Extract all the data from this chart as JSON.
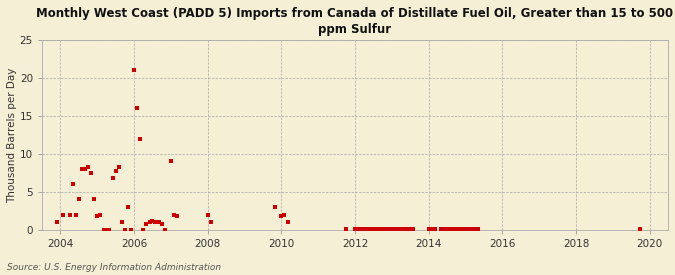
{
  "title": "Monthly West Coast (PADD 5) Imports from Canada of Distillate Fuel Oil, Greater than 15 to 500\nppm Sulfur",
  "ylabel": "Thousand Barrels per Day",
  "source": "Source: U.S. Energy Information Administration",
  "background_color": "#f5efd5",
  "plot_bg_color": "#f5efd5",
  "marker_color": "#cc0000",
  "xlim": [
    2003.5,
    2020.5
  ],
  "ylim": [
    0,
    25
  ],
  "yticks": [
    0,
    5,
    10,
    15,
    20,
    25
  ],
  "xticks": [
    2004,
    2006,
    2008,
    2010,
    2012,
    2014,
    2016,
    2018,
    2020
  ],
  "data_points": [
    [
      2003.92,
      1.0
    ],
    [
      2004.08,
      2.0
    ],
    [
      2004.25,
      1.9
    ],
    [
      2004.33,
      6.0
    ],
    [
      2004.42,
      2.0
    ],
    [
      2004.5,
      4.0
    ],
    [
      2004.58,
      8.0
    ],
    [
      2004.67,
      8.0
    ],
    [
      2004.75,
      8.2
    ],
    [
      2004.83,
      7.5
    ],
    [
      2004.92,
      4.0
    ],
    [
      2005.0,
      1.8
    ],
    [
      2005.08,
      2.0
    ],
    [
      2005.17,
      0.0
    ],
    [
      2005.25,
      0.0
    ],
    [
      2005.33,
      0.0
    ],
    [
      2005.42,
      6.8
    ],
    [
      2005.5,
      7.8
    ],
    [
      2005.58,
      8.2
    ],
    [
      2005.67,
      1.0
    ],
    [
      2005.75,
      0.0
    ],
    [
      2005.83,
      3.0
    ],
    [
      2005.92,
      0.0
    ],
    [
      2006.0,
      21.0
    ],
    [
      2006.08,
      16.0
    ],
    [
      2006.17,
      12.0
    ],
    [
      2006.25,
      0.0
    ],
    [
      2006.33,
      0.8
    ],
    [
      2006.42,
      1.0
    ],
    [
      2006.5,
      1.2
    ],
    [
      2006.58,
      1.0
    ],
    [
      2006.67,
      1.0
    ],
    [
      2006.75,
      0.8
    ],
    [
      2006.83,
      0.0
    ],
    [
      2007.0,
      9.0
    ],
    [
      2007.08,
      2.0
    ],
    [
      2007.17,
      1.8
    ],
    [
      2008.0,
      2.0
    ],
    [
      2008.08,
      1.0
    ],
    [
      2009.83,
      3.0
    ],
    [
      2010.0,
      1.8
    ],
    [
      2010.08,
      2.0
    ],
    [
      2010.17,
      1.0
    ],
    [
      2011.75,
      0.05
    ],
    [
      2012.0,
      0.05
    ],
    [
      2012.08,
      0.05
    ],
    [
      2012.17,
      0.05
    ],
    [
      2012.25,
      0.05
    ],
    [
      2012.33,
      0.05
    ],
    [
      2012.42,
      0.05
    ],
    [
      2012.5,
      0.05
    ],
    [
      2012.58,
      0.05
    ],
    [
      2012.67,
      0.05
    ],
    [
      2012.75,
      0.05
    ],
    [
      2012.83,
      0.05
    ],
    [
      2012.92,
      0.05
    ],
    [
      2013.0,
      0.05
    ],
    [
      2013.08,
      0.05
    ],
    [
      2013.17,
      0.05
    ],
    [
      2013.25,
      0.05
    ],
    [
      2013.33,
      0.05
    ],
    [
      2013.42,
      0.05
    ],
    [
      2013.5,
      0.05
    ],
    [
      2013.58,
      0.05
    ],
    [
      2014.0,
      0.05
    ],
    [
      2014.08,
      0.05
    ],
    [
      2014.17,
      0.05
    ],
    [
      2014.33,
      0.05
    ],
    [
      2014.42,
      0.05
    ],
    [
      2014.5,
      0.05
    ],
    [
      2014.58,
      0.05
    ],
    [
      2014.67,
      0.05
    ],
    [
      2014.75,
      0.05
    ],
    [
      2014.83,
      0.05
    ],
    [
      2014.92,
      0.05
    ],
    [
      2015.0,
      0.05
    ],
    [
      2015.08,
      0.05
    ],
    [
      2015.17,
      0.05
    ],
    [
      2015.25,
      0.05
    ],
    [
      2015.33,
      0.05
    ],
    [
      2019.75,
      0.05
    ]
  ]
}
